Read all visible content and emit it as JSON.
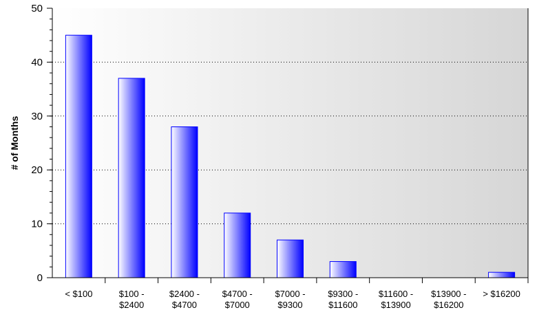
{
  "chart_data": {
    "type": "bar",
    "y_label": "# of Months",
    "categories": [
      "< $100",
      "$100 -\n$2400",
      "$2400 -\n$4700",
      "$4700 -\n$7000",
      "$7000 -\n$9300",
      "$9300 -\n$11600",
      "$11600 -\n$13900",
      "$13900 -\n$16200",
      "> $16200"
    ],
    "values": [
      45,
      37,
      28,
      12,
      7,
      3,
      0,
      0,
      1
    ],
    "color": "#0000ff",
    "ylim": [
      0,
      50
    ],
    "yticks": [
      0,
      10,
      20,
      30,
      40,
      50
    ],
    "grid": true
  }
}
